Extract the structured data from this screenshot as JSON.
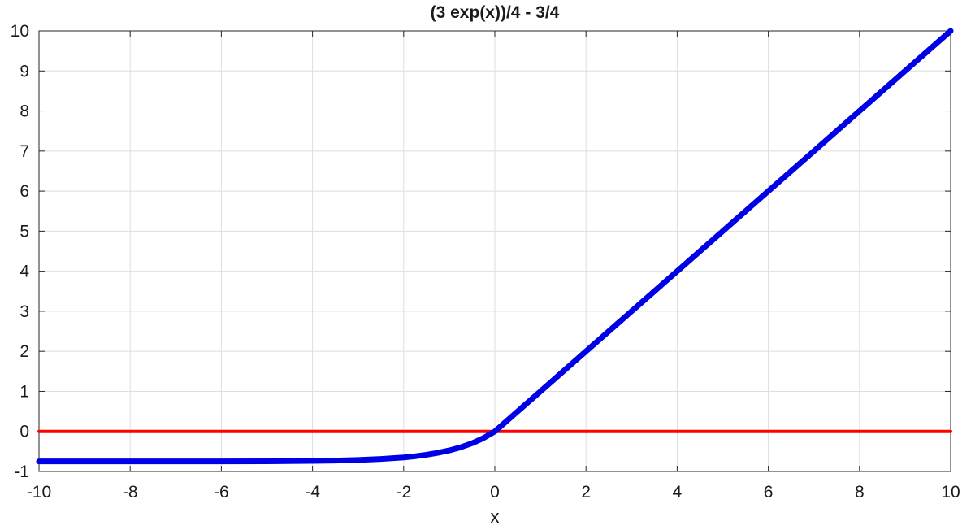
{
  "chart_data": {
    "type": "line",
    "title": "(3 exp(x))/4 - 3/4",
    "xlabel": "x",
    "ylabel": "",
    "xlim": [
      -10,
      10
    ],
    "ylim": [
      -1,
      10
    ],
    "x_ticks": [
      -10,
      -8,
      -6,
      -4,
      -2,
      0,
      2,
      4,
      6,
      8,
      10
    ],
    "y_ticks": [
      -1,
      0,
      1,
      2,
      3,
      4,
      5,
      6,
      7,
      8,
      9,
      10
    ],
    "x_tick_labels": [
      "-10",
      "-8",
      "-6",
      "-4",
      "-2",
      "0",
      "2",
      "4",
      "6",
      "8",
      "10"
    ],
    "y_tick_labels": [
      "-1",
      "0",
      "1",
      "2",
      "3",
      "4",
      "5",
      "6",
      "7",
      "8",
      "9",
      "10"
    ],
    "grid": true,
    "series": [
      {
        "color": "#0000e6",
        "x": [
          -10,
          -9,
          -8,
          -7,
          -6,
          -5,
          -4,
          -3.5,
          -3,
          -2.5,
          -2,
          -1.75,
          -1.5,
          -1.25,
          -1,
          -0.75,
          -0.5,
          -0.25,
          0,
          1,
          2,
          3,
          4,
          5,
          6,
          7,
          8,
          9,
          10
        ],
        "y": [
          -0.75,
          -0.75,
          -0.75,
          -0.749,
          -0.748,
          -0.745,
          -0.736,
          -0.728,
          -0.713,
          -0.688,
          -0.649,
          -0.621,
          -0.583,
          -0.535,
          -0.474,
          -0.396,
          -0.295,
          -0.166,
          0,
          1,
          2,
          3,
          4,
          5,
          6,
          7,
          8,
          9,
          10
        ]
      },
      {
        "color": "#ff0000",
        "x": [
          -10,
          10
        ],
        "y": [
          0,
          0
        ]
      }
    ]
  }
}
